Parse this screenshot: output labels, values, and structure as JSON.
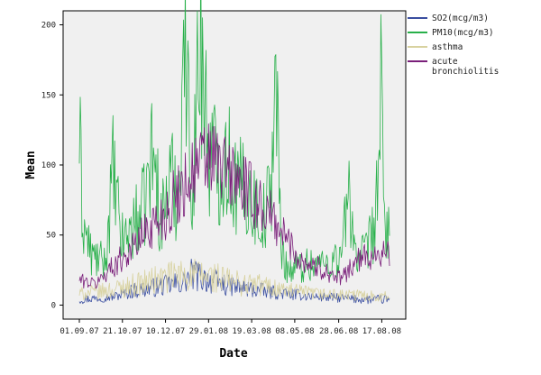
{
  "chart_data": {
    "type": "line",
    "xlabel": "Date",
    "ylabel": "Mean",
    "ylim": [
      -10,
      210
    ],
    "yticks": [
      0,
      50,
      100,
      150,
      200
    ],
    "x_tick_labels": [
      "01.09.07",
      "21.10.07",
      "10.12.07",
      "29.01.08",
      "19.03.08",
      "08.05.08",
      "28.06.08",
      "17.08.08"
    ],
    "x_start": "01.09.07",
    "x_end": "26.08.08",
    "legend_position": "right",
    "grid": false,
    "series": [
      {
        "name": "SO2(mcg/m3)",
        "color": "#3a4ea0",
        "keypoints": [
          [
            "01.09.07",
            4
          ],
          [
            "21.09.07",
            5
          ],
          [
            "11.10.07",
            6
          ],
          [
            "01.11.07",
            10
          ],
          [
            "20.11.07",
            12
          ],
          [
            "10.12.07",
            14
          ],
          [
            "30.12.07",
            16
          ],
          [
            "10.01.08",
            22
          ],
          [
            "29.01.08",
            18
          ],
          [
            "20.02.08",
            14
          ],
          [
            "10.03.08",
            12
          ],
          [
            "01.04.08",
            10
          ],
          [
            "01.05.08",
            8
          ],
          [
            "01.06.08",
            6
          ],
          [
            "01.07.08",
            5
          ],
          [
            "01.08.08",
            4
          ],
          [
            "26.08.08",
            4
          ]
        ]
      },
      {
        "name": "PM10(mcg/m3)",
        "color": "#28b04a",
        "keypoints": [
          [
            "01.09.07",
            120
          ],
          [
            "05.09.07",
            60
          ],
          [
            "15.09.07",
            35
          ],
          [
            "01.10.07",
            30
          ],
          [
            "10.10.07",
            95
          ],
          [
            "20.10.07",
            45
          ],
          [
            "01.11.07",
            55
          ],
          [
            "15.11.07",
            70
          ],
          [
            "25.11.07",
            110
          ],
          [
            "05.12.07",
            60
          ],
          [
            "15.12.07",
            90
          ],
          [
            "25.12.07",
            80
          ],
          [
            "31.12.07",
            195
          ],
          [
            "10.01.08",
            85
          ],
          [
            "20.01.08",
            195
          ],
          [
            "29.01.08",
            110
          ],
          [
            "10.02.08",
            100
          ],
          [
            "20.02.08",
            105
          ],
          [
            "01.03.08",
            85
          ],
          [
            "15.03.08",
            80
          ],
          [
            "01.04.08",
            60
          ],
          [
            "10.04.08",
            80
          ],
          [
            "16.04.08",
            170
          ],
          [
            "22.04.08",
            40
          ],
          [
            "01.05.08",
            25
          ],
          [
            "15.05.08",
            28
          ],
          [
            "01.06.08",
            30
          ],
          [
            "15.06.08",
            30
          ],
          [
            "01.07.08",
            35
          ],
          [
            "10.07.08",
            80
          ],
          [
            "20.07.08",
            30
          ],
          [
            "01.08.08",
            40
          ],
          [
            "10.08.08",
            60
          ],
          [
            "16.08.08",
            145
          ],
          [
            "20.08.08",
            60
          ],
          [
            "26.08.08",
            50
          ]
        ]
      },
      {
        "name": "asthma",
        "color": "#d8d2a0",
        "keypoints": [
          [
            "01.09.07",
            8
          ],
          [
            "01.10.07",
            10
          ],
          [
            "01.11.07",
            14
          ],
          [
            "01.12.07",
            18
          ],
          [
            "01.01.08",
            22
          ],
          [
            "01.02.08",
            20
          ],
          [
            "01.03.08",
            16
          ],
          [
            "01.04.08",
            14
          ],
          [
            "01.05.08",
            10
          ],
          [
            "01.06.08",
            8
          ],
          [
            "01.07.08",
            7
          ],
          [
            "01.08.08",
            7
          ],
          [
            "26.08.08",
            6
          ]
        ]
      },
      {
        "name": "acute bronchiolitis",
        "color": "#7a1f7a",
        "keypoints": [
          [
            "01.09.07",
            18
          ],
          [
            "20.09.07",
            15
          ],
          [
            "05.10.07",
            25
          ],
          [
            "01.11.07",
            40
          ],
          [
            "20.11.07",
            55
          ],
          [
            "10.12.07",
            65
          ],
          [
            "25.12.07",
            80
          ],
          [
            "10.01.08",
            95
          ],
          [
            "20.01.08",
            100
          ],
          [
            "29.01.08",
            105
          ],
          [
            "10.02.08",
            100
          ],
          [
            "20.02.08",
            95
          ],
          [
            "01.03.08",
            90
          ],
          [
            "15.03.08",
            80
          ],
          [
            "01.04.08",
            70
          ],
          [
            "15.04.08",
            60
          ],
          [
            "01.05.08",
            45
          ],
          [
            "15.05.08",
            32
          ],
          [
            "01.06.08",
            28
          ],
          [
            "20.06.08",
            22
          ],
          [
            "01.07.08",
            18
          ],
          [
            "15.07.08",
            30
          ],
          [
            "01.08.08",
            35
          ],
          [
            "15.08.08",
            38
          ],
          [
            "26.08.08",
            35
          ]
        ]
      }
    ],
    "legend_labels": [
      {
        "series": 0,
        "lines": [
          "SO2(mcg/m3)"
        ]
      },
      {
        "series": 1,
        "lines": [
          "PM10(mcg/m3)"
        ]
      },
      {
        "series": 2,
        "lines": [
          "asthma"
        ]
      },
      {
        "series": 3,
        "lines": [
          "acute",
          "bronchiolitis"
        ]
      }
    ]
  }
}
